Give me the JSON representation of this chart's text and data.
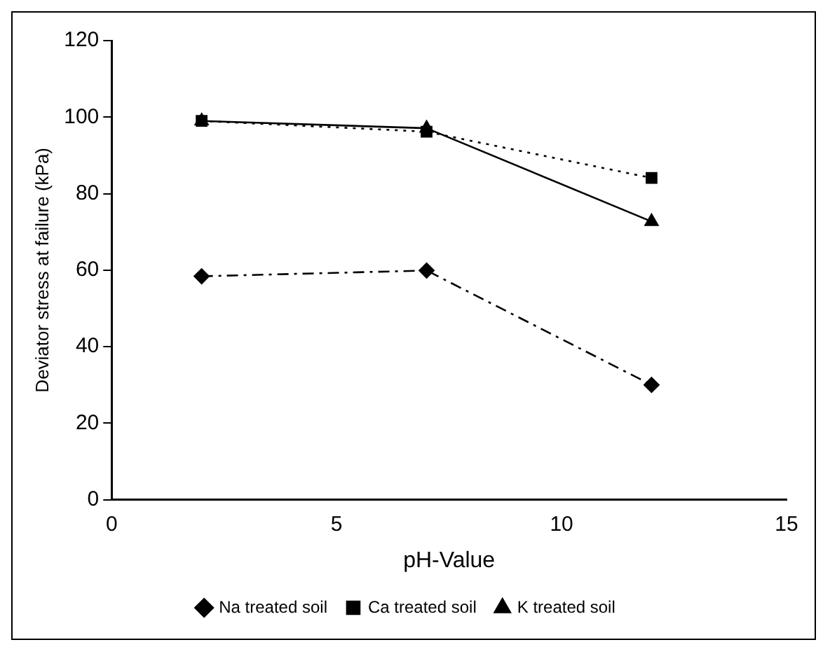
{
  "chart_data": {
    "type": "line",
    "xlabel": "pH-Value",
    "ylabel": "Deviator stress at failure (kPa)",
    "x": [
      2,
      7,
      12
    ],
    "series": [
      {
        "name": "Na treated soil",
        "color": "#000000",
        "values": [
          58.4,
          59.9,
          30
        ],
        "marker": "diamond",
        "line_style": "dashdot"
      },
      {
        "name": "Ca treated soil",
        "color": "#000000",
        "values": [
          99,
          96.2,
          84.1
        ],
        "marker": "square",
        "line_style": "dotted"
      },
      {
        "name": "K treated soil",
        "color": "#000000",
        "values": [
          99,
          97.1,
          72.7
        ],
        "marker": "triangle",
        "line_style": "solid"
      }
    ],
    "xlim": [
      0,
      15
    ],
    "xticks": [
      0,
      5,
      10,
      15
    ],
    "ylim": [
      0,
      120
    ],
    "yticks": [
      0,
      20,
      40,
      60,
      80,
      100,
      120
    ],
    "grid": false,
    "legend": "bottom"
  }
}
